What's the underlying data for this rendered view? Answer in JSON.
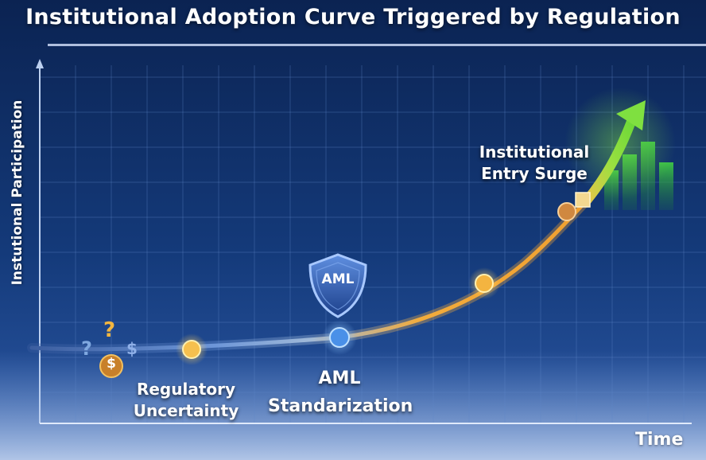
{
  "title": "Institutional Adoption Curve Triggered by Regulation",
  "y_axis_label": "Instutional Participation",
  "x_axis_label": "Time",
  "shield_text": "AML",
  "stages": [
    {
      "line1": "Regulatory",
      "line2": "Uncertainty"
    },
    {
      "line1": "AML",
      "line2": "Standarization"
    },
    {
      "line1": "Institutional",
      "line2": "Entry Surge"
    }
  ],
  "uncertainty_icons": {
    "q1": "?",
    "q2": "?",
    "dollar": "$",
    "coin": "$"
  },
  "colors": {
    "background": "#0d2a5e",
    "curve_start": "#4a78c8",
    "curve_end": "#f0a030",
    "arrow": "#7fe040",
    "marker_yellow": "#f6c04e",
    "marker_blue": "#4a90e8"
  }
}
